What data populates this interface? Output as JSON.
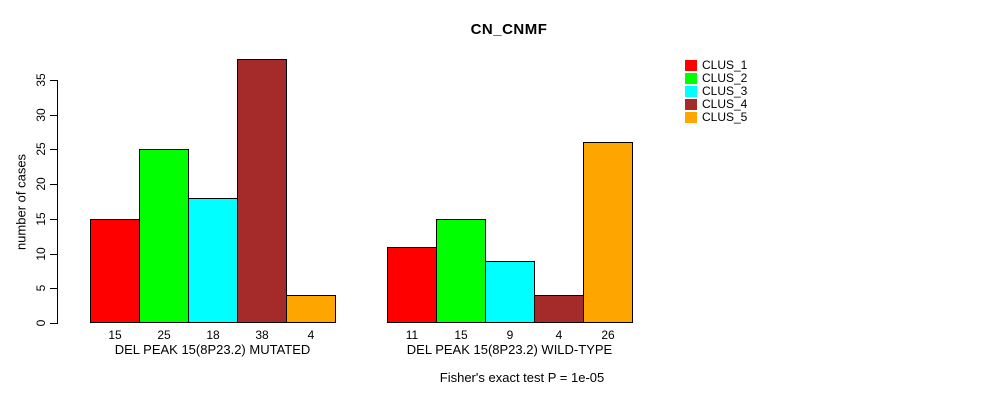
{
  "chart_data": {
    "type": "bar",
    "title": "CN_CNMF",
    "ylabel": "number of cases",
    "ylim": [
      0,
      35
    ],
    "yticks": [
      0,
      5,
      10,
      15,
      20,
      25,
      30,
      35
    ],
    "grid": false,
    "legend_position": "right",
    "categories": [
      "DEL PEAK 15(8P23.2) MUTATED",
      "DEL PEAK 15(8P23.2) WILD-TYPE"
    ],
    "series": [
      {
        "name": "CLUS_1",
        "color": "#FF0000",
        "values": [
          15,
          11
        ]
      },
      {
        "name": "CLUS_2",
        "color": "#00FF00",
        "values": [
          25,
          15
        ]
      },
      {
        "name": "CLUS_3",
        "color": "#00FFFF",
        "values": [
          18,
          9
        ]
      },
      {
        "name": "CLUS_4",
        "color": "#A52A2A",
        "values": [
          38,
          4
        ]
      },
      {
        "name": "CLUS_5",
        "color": "#FFA500",
        "values": [
          4,
          26
        ]
      }
    ],
    "bar_value_labels_shown": true,
    "annotation": "Fisher's exact test P = 1e-05"
  }
}
